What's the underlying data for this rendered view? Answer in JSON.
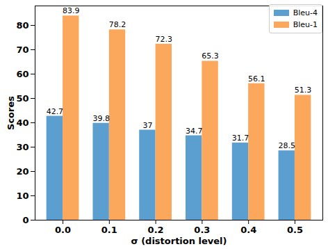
{
  "chart_data": {
    "type": "bar",
    "x_label": "σ (distortion level)",
    "y_label": "Scores",
    "categories": [
      "0.0",
      "0.1",
      "0.2",
      "0.3",
      "0.4",
      "0.5"
    ],
    "series": [
      {
        "name": "Bleu-4",
        "color": "#5a9fd0",
        "values": [
          42.7,
          39.8,
          37.0,
          34.7,
          31.7,
          28.5
        ]
      },
      {
        "name": "Bleu-1",
        "color": "#fba85c",
        "values": [
          83.9,
          78.2,
          72.3,
          65.3,
          56.1,
          51.3
        ]
      }
    ],
    "ylim": [
      0,
      88
    ],
    "yticks": [
      0,
      10,
      20,
      30,
      40,
      50,
      60,
      70,
      80
    ],
    "data_labels": true,
    "value_labels": null,
    "grid": false,
    "legend": "upper right"
  }
}
